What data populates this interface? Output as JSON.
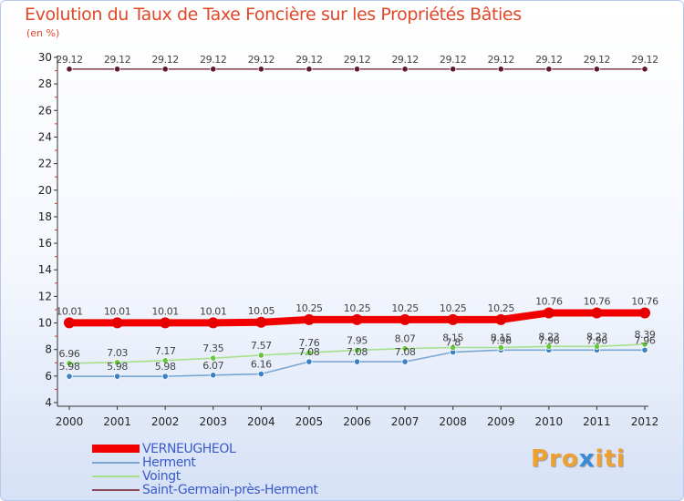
{
  "header": {
    "title": "Evolution du Taux de Taxe Foncière sur les Propriétés Bâties",
    "subtitle": "(en %)"
  },
  "logo": {
    "text": "Proxiti",
    "prefix": "Pro",
    "accent": "x",
    "suffix": "iti"
  },
  "chart_data": {
    "type": "line",
    "title": "Evolution du Taux de Taxe Foncière sur les Propriétés Bâties",
    "ylabel": "(en %)",
    "xlabel": "",
    "x": [
      "2000",
      "2001",
      "2002",
      "2003",
      "2004",
      "2005",
      "2006",
      "2007",
      "2008",
      "2009",
      "2010",
      "2011",
      "2012"
    ],
    "ylim": [
      4,
      30
    ],
    "yticks": [
      4,
      6,
      8,
      10,
      12,
      14,
      16,
      18,
      20,
      22,
      24,
      26,
      28,
      30
    ],
    "grid": false,
    "legend_position": "bottom-left",
    "series": [
      {
        "name": "VERNEUGHEOL",
        "color": "#f20000",
        "marker": "#e60000",
        "emphasis": true,
        "values": [
          10.01,
          10.01,
          10.01,
          10.01,
          10.05,
          10.25,
          10.25,
          10.25,
          10.25,
          10.25,
          10.76,
          10.76,
          10.76
        ],
        "labels": [
          "10.01",
          "10.01",
          "10.01",
          "10.01",
          "10.05",
          "10.25",
          "10.25",
          "10.25",
          "10.25",
          "10.25",
          "10.76",
          "10.76",
          "10.76"
        ]
      },
      {
        "name": "Herment",
        "color": "#7aa6d2",
        "marker": "#3c7fc2",
        "emphasis": false,
        "values": [
          5.98,
          5.98,
          5.98,
          6.07,
          6.16,
          7.08,
          7.08,
          7.08,
          7.8,
          7.96,
          7.96,
          7.96,
          7.96
        ],
        "labels": [
          "5.98",
          "5.98",
          "5.98",
          "6.07",
          "6.16",
          "7.08",
          "7.08",
          "7.08",
          "7.8",
          "7.96",
          "7.96",
          "7.96",
          "7.96"
        ]
      },
      {
        "name": "Voingt",
        "color": "#a6e08c",
        "marker": "#66c63c",
        "emphasis": false,
        "values": [
          6.96,
          7.03,
          7.17,
          7.35,
          7.57,
          7.76,
          7.95,
          8.07,
          8.15,
          8.15,
          8.23,
          8.23,
          8.39
        ],
        "labels": [
          "6.96",
          "7.03",
          "7.17",
          "7.35",
          "7.57",
          "7.76",
          "7.95",
          "8.07",
          "8.15",
          "8.15",
          "8.23",
          "8.23",
          "8.39"
        ]
      },
      {
        "name": "Saint-Germain-près-Herment",
        "color": "#8a4a58",
        "marker": "#5e1a2c",
        "emphasis": false,
        "values": [
          29.12,
          29.12,
          29.12,
          29.12,
          29.12,
          29.12,
          29.12,
          29.12,
          29.12,
          29.12,
          29.12,
          29.12,
          29.12
        ],
        "labels": [
          "29.12",
          "29.12",
          "29.12",
          "29.12",
          "29.12",
          "29.12",
          "29.12",
          "29.12",
          "29.12",
          "29.12",
          "29.12",
          "29.12",
          "29.12"
        ]
      }
    ]
  }
}
